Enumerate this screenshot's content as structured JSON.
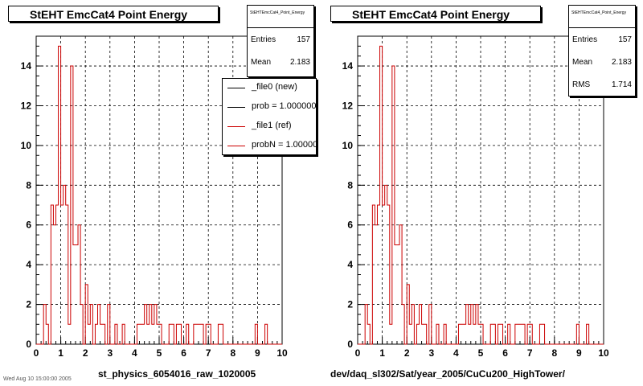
{
  "chart_data": [
    {
      "type": "bar",
      "title": "StEHT EmcCat4 Point Energy",
      "xlabel": "st_physics_6054016_raw_1020005",
      "ylabel": "",
      "xlim": [
        0,
        10
      ],
      "ylim": [
        0,
        15.5
      ],
      "grid": true,
      "bin_width": 0.1,
      "x_ticks": [
        "0",
        "1",
        "2",
        "3",
        "4",
        "5",
        "6",
        "7",
        "8",
        "9",
        "10"
      ],
      "y_ticks": [
        "0",
        "2",
        "4",
        "6",
        "8",
        "10",
        "12",
        "14"
      ],
      "series": [
        {
          "name": "_file1 (ref)",
          "color": "#cc0000",
          "values": [
            0,
            0,
            0,
            2,
            1,
            0,
            7,
            6,
            7,
            15,
            7,
            8,
            7,
            1,
            14,
            5,
            5,
            6,
            2,
            0,
            3,
            1,
            2,
            0,
            1,
            2,
            1,
            1,
            0,
            2,
            0,
            0,
            1,
            0,
            0,
            1,
            0,
            0,
            0,
            0,
            0,
            1,
            1,
            1,
            2,
            1,
            2,
            1,
            2,
            1,
            1,
            0,
            0,
            0,
            1,
            1,
            0,
            1,
            1,
            0,
            0,
            1,
            0,
            0,
            1,
            1,
            1,
            1,
            0,
            1,
            1,
            0,
            0,
            0,
            1,
            1,
            0,
            0,
            0,
            0,
            0,
            0,
            0,
            0,
            0,
            0,
            0,
            0,
            0,
            1,
            0,
            0,
            0,
            1,
            0,
            0,
            0,
            0,
            0,
            0
          ]
        }
      ],
      "legend_position": "top-right",
      "legend": [
        {
          "label": "_file0 (new)",
          "color": "#000000"
        },
        {
          "label": "prob = 1.000000",
          "color": "#000000"
        },
        {
          "label": "_file1 (ref)",
          "color": "#cc0000"
        },
        {
          "label": "probN = 1.000000",
          "color": "#cc0000"
        }
      ],
      "stats": {
        "name": "StEHTEmcCat4_Point_Energy",
        "entries_label": "Entries",
        "entries": "157",
        "mean_label": "Mean",
        "mean": "2.183"
      }
    },
    {
      "type": "bar",
      "title": "StEHT EmcCat4 Point Energy",
      "xlabel": "dev/daq_sl302/Sat/year_2005/CuCu200_HighTower/",
      "ylabel": "",
      "xlim": [
        0,
        10
      ],
      "ylim": [
        0,
        15.5
      ],
      "grid": true,
      "bin_width": 0.1,
      "x_ticks": [
        "0",
        "1",
        "2",
        "3",
        "4",
        "5",
        "6",
        "7",
        "8",
        "9",
        "10"
      ],
      "y_ticks": [
        "0",
        "2",
        "4",
        "6",
        "8",
        "10",
        "12",
        "14"
      ],
      "series": [
        {
          "name": "",
          "color": "#cc0000",
          "values": [
            0,
            0,
            0,
            2,
            1,
            0,
            7,
            6,
            7,
            15,
            7,
            8,
            7,
            1,
            14,
            5,
            5,
            6,
            2,
            0,
            3,
            1,
            2,
            0,
            1,
            2,
            1,
            1,
            0,
            2,
            0,
            0,
            1,
            0,
            0,
            1,
            0,
            0,
            0,
            0,
            0,
            1,
            1,
            1,
            2,
            1,
            2,
            1,
            2,
            1,
            1,
            0,
            0,
            0,
            1,
            1,
            0,
            1,
            1,
            0,
            0,
            1,
            0,
            0,
            1,
            1,
            1,
            1,
            0,
            1,
            1,
            0,
            0,
            0,
            1,
            1,
            0,
            0,
            0,
            0,
            0,
            0,
            0,
            0,
            0,
            0,
            0,
            0,
            0,
            1,
            0,
            0,
            0,
            1,
            0,
            0,
            0,
            0,
            0,
            0
          ]
        }
      ],
      "stats": {
        "name": "StEHTEmcCat4_Point_Energy",
        "entries_label": "Entries",
        "entries": "157",
        "mean_label": "Mean",
        "mean": "2.183",
        "rms_label": "RMS",
        "rms": "1.714"
      }
    }
  ],
  "footer": "Wed Aug 10 15:00:00 2005"
}
